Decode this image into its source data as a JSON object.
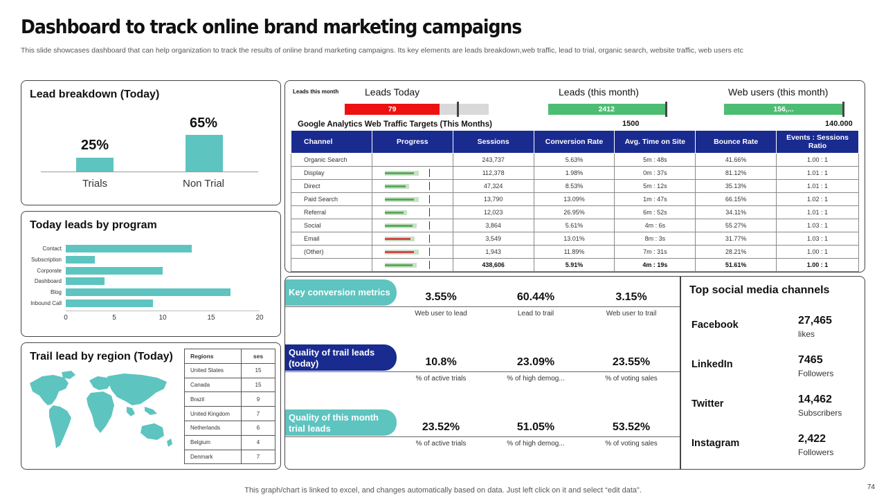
{
  "page": {
    "title": "Dashboard to track online brand marketing campaigns",
    "subtitle": "This slide showcases dashboard that can help organization to track the results of online brand marketing campaigns. Its key elements are leads breakdown,web traffic, lead to trial, organic search, website traffic, web users etc",
    "footnote": "This graph/chart is linked to excel, and changes automatically based on data. Just left click on it and select “edit data”.",
    "page_number": "74"
  },
  "lead_breakdown": {
    "title": "Lead breakdown (Today)",
    "bars": [
      {
        "label": "Trials",
        "value_label": "25%",
        "value": 25
      },
      {
        "label": "Non Trial",
        "value_label": "65%",
        "value": 65
      }
    ]
  },
  "leads_by_program": {
    "title": "Today leads by program"
  },
  "region": {
    "title": "Trail lead by region (Today)",
    "headers": [
      "Regions",
      "ses"
    ],
    "rows": [
      {
        "region": "United States",
        "value": "15"
      },
      {
        "region": "Canada",
        "value": "15"
      },
      {
        "region": "Brazil",
        "value": "9"
      },
      {
        "region": "United Kingdom",
        "value": "7"
      },
      {
        "region": "Netherlands",
        "value": "6"
      },
      {
        "region": "Belgium",
        "value": "4"
      },
      {
        "region": "Denmark",
        "value": "7"
      }
    ]
  },
  "analytics": {
    "leads_this_month_small": "Leads this month",
    "leads_today": {
      "title": "Leads Today",
      "value": "79",
      "fill_fraction": 0.66,
      "color": "#ee1111"
    },
    "leads_month": {
      "title": "Leads (this month)",
      "value": "2412",
      "target": "1500",
      "fill_fraction": 0.98,
      "color": "#4dbd74"
    },
    "web_users": {
      "title": "Web users (this month)",
      "value": "156,...",
      "target": "140.000",
      "fill_fraction": 1.0,
      "color": "#4dbd74"
    },
    "table_title": "Google  Analytics Web Traffic Targets (This Months)",
    "headers": [
      "Channel",
      "Progress",
      "Sessions",
      "Conversion Rate",
      "Avg. Time on Site",
      "Bounce Rate",
      "Events : Sessions Ratio"
    ],
    "rows": [
      {
        "channel": "Organic Search",
        "progress": null,
        "sessions": "243,737",
        "conversion": "5.63%",
        "time": "5m : 48s",
        "bounce": "41.66%",
        "ratio": "1.00 : 1"
      },
      {
        "channel": "Display",
        "progress": 0.85,
        "sessions": "112,378",
        "conversion": "1.98%",
        "time": "0m : 37s",
        "bounce": "81.12%",
        "ratio": "1.01 : 1",
        "bar_color": "#5aaa5a"
      },
      {
        "channel": "Direct",
        "progress": 0.6,
        "sessions": "47,324",
        "conversion": "8.53%",
        "time": "5m : 12s",
        "bounce": "35.13%",
        "ratio": "1.01 : 1",
        "bar_color": "#5aaa5a"
      },
      {
        "channel": "Paid Search",
        "progress": 0.85,
        "sessions": "13,790",
        "conversion": "13.09%",
        "time": "1m : 47s",
        "bounce": "66.15%",
        "ratio": "1.02 : 1",
        "bar_color": "#5aaa5a"
      },
      {
        "channel": "Referral",
        "progress": 0.55,
        "sessions": "12,023",
        "conversion": "26.95%",
        "time": "6m : 52s",
        "bounce": "34.11%",
        "ratio": "1.01 : 1",
        "bar_color": "#5aaa5a"
      },
      {
        "channel": "Social",
        "progress": 0.8,
        "sessions": "3,864",
        "conversion": "5.61%",
        "time": "4m : 6s",
        "bounce": "55.27%",
        "ratio": "1.03 : 1",
        "bar_color": "#5aaa5a"
      },
      {
        "channel": "Email",
        "progress": 0.75,
        "sessions": "3,549",
        "conversion": "13.01%",
        "time": "8m : 3s",
        "bounce": "31.77%",
        "ratio": "1.03 : 1",
        "bar_color": "#d64545"
      },
      {
        "channel": "(Other)",
        "progress": 0.85,
        "sessions": "1,943",
        "conversion": "11.89%",
        "time": "7m : 31s",
        "bounce": "28.21%",
        "ratio": "1.00 : 1",
        "bar_color": "#d64545"
      }
    ],
    "total": {
      "progress": 0.8,
      "sessions": "438,606",
      "conversion": "5.91%",
      "time": "4m : 19s",
      "bounce": "51.61%",
      "ratio": "1.00 : 1"
    }
  },
  "kpis": [
    {
      "label": "Key conversion metrics",
      "color": "#5ec4c0",
      "values": [
        "3.55%",
        "60.44%",
        "3.15%"
      ],
      "captions": [
        "Web user to lead",
        "Lead to trail",
        "Web user to trail"
      ]
    },
    {
      "label": "Quality of trail leads (today)",
      "color": "#1a2b8f",
      "values": [
        "10.8%",
        "23.09%",
        "23.55%"
      ],
      "captions": [
        "% of active trials",
        "% of high demog...",
        "% of voting sales"
      ]
    },
    {
      "label": "Quality of this month trial leads",
      "color": "#5ec4c0",
      "values": [
        "23.52%",
        "51.05%",
        "53.52%"
      ],
      "captions": [
        "% of active trials",
        "% of high demog...",
        "% of voting sales"
      ]
    }
  ],
  "social": {
    "title": "Top social media channels",
    "items": [
      {
        "name": "Facebook",
        "value": "27,465",
        "unit": "likes"
      },
      {
        "name": "LinkedIn",
        "value": "7465",
        "unit": "Followers"
      },
      {
        "name": "Twitter",
        "value": "14,462",
        "unit": "Subscribers"
      },
      {
        "name": "Instagram",
        "value": "2,422",
        "unit": "Followers"
      }
    ]
  },
  "chart_data": [
    {
      "type": "bar",
      "title": "Lead breakdown (Today)",
      "categories": [
        "Trials",
        "Non Trial"
      ],
      "values": [
        25,
        65
      ],
      "ylim": [
        0,
        100
      ]
    },
    {
      "type": "bar",
      "orientation": "horizontal",
      "title": "Today leads by program",
      "categories": [
        "Contact",
        "Subscription",
        "Corporate",
        "Dashboard",
        "Blog",
        "Inbound Call"
      ],
      "values": [
        13,
        3,
        10,
        4,
        17,
        9
      ],
      "xlim": [
        0,
        20
      ],
      "xticks": [
        "0",
        "5",
        "10",
        "15",
        "20"
      ],
      "color": "#5ec4c0"
    }
  ]
}
